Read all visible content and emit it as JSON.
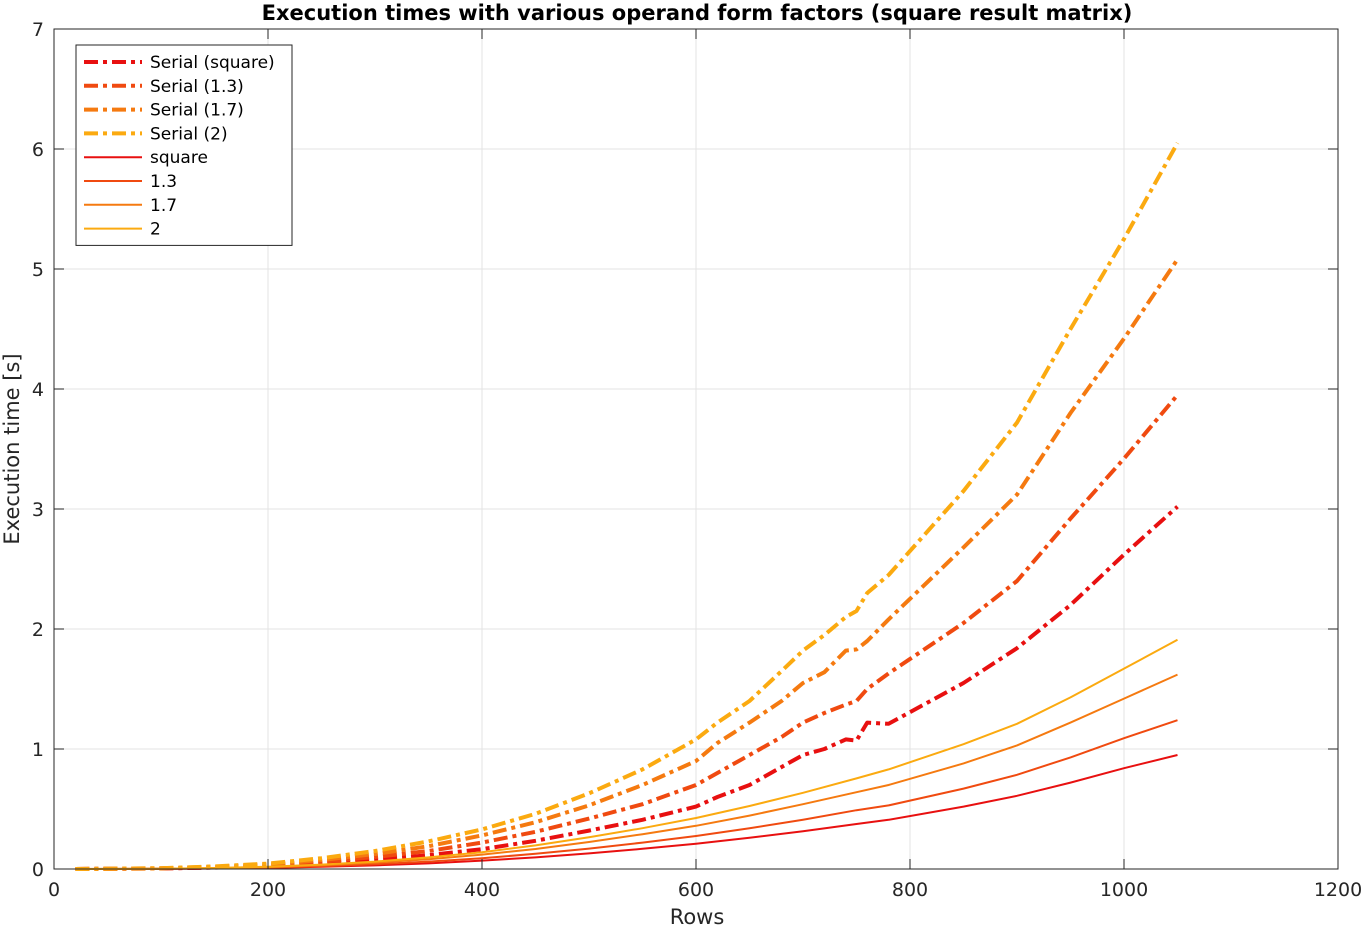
{
  "chart_data": {
    "type": "line",
    "title": "Execution times with various operand form factors (square result matrix)",
    "xlabel": "Rows",
    "ylabel": "Execution time [s]",
    "xlim": [
      0,
      1200
    ],
    "ylim": [
      0,
      7
    ],
    "xticks": [
      0,
      200,
      400,
      600,
      800,
      1000,
      1200
    ],
    "yticks": [
      0,
      1,
      2,
      3,
      4,
      5,
      6,
      7
    ],
    "grid": true,
    "legend_position": "top-left",
    "series": [
      {
        "name": "Serial (square)",
        "style": "dashdot",
        "color": "#e81010",
        "x": [
          20,
          100,
          150,
          200,
          250,
          300,
          350,
          400,
          450,
          500,
          550,
          600,
          620,
          650,
          680,
          700,
          720,
          740,
          750,
          760,
          780,
          850,
          900,
          950,
          1000,
          1050
        ],
        "y": [
          0,
          0.004,
          0.012,
          0.025,
          0.045,
          0.075,
          0.115,
          0.165,
          0.235,
          0.32,
          0.41,
          0.52,
          0.6,
          0.7,
          0.85,
          0.95,
          1.0,
          1.08,
          1.07,
          1.22,
          1.21,
          1.55,
          1.84,
          2.2,
          2.62,
          3.02
        ]
      },
      {
        "name": "Serial (1.3)",
        "style": "dashdot",
        "color": "#f04a10",
        "x": [
          20,
          100,
          150,
          200,
          250,
          300,
          350,
          400,
          450,
          500,
          550,
          600,
          620,
          650,
          680,
          700,
          720,
          740,
          750,
          760,
          780,
          850,
          900,
          950,
          1000,
          1050
        ],
        "y": [
          0,
          0.005,
          0.015,
          0.032,
          0.06,
          0.1,
          0.15,
          0.22,
          0.31,
          0.42,
          0.54,
          0.7,
          0.8,
          0.95,
          1.1,
          1.22,
          1.3,
          1.37,
          1.4,
          1.5,
          1.63,
          2.05,
          2.4,
          2.92,
          3.42,
          3.95
        ]
      },
      {
        "name": "Serial (1.7)",
        "style": "dashdot",
        "color": "#f57a10",
        "x": [
          20,
          100,
          150,
          200,
          250,
          300,
          350,
          400,
          450,
          500,
          550,
          600,
          620,
          650,
          680,
          700,
          720,
          740,
          750,
          760,
          780,
          850,
          900,
          950,
          1000,
          1050
        ],
        "y": [
          0,
          0.006,
          0.018,
          0.038,
          0.075,
          0.125,
          0.19,
          0.28,
          0.39,
          0.53,
          0.7,
          0.9,
          1.05,
          1.22,
          1.4,
          1.55,
          1.64,
          1.82,
          1.83,
          1.9,
          2.08,
          2.68,
          3.12,
          3.8,
          4.42,
          5.08
        ]
      },
      {
        "name": "Serial (2)",
        "style": "dashdot",
        "color": "#fbaa10",
        "x": [
          20,
          100,
          150,
          200,
          250,
          300,
          350,
          400,
          450,
          500,
          550,
          600,
          620,
          650,
          680,
          700,
          720,
          740,
          750,
          760,
          780,
          850,
          900,
          950,
          1000,
          1050
        ],
        "y": [
          0,
          0.007,
          0.022,
          0.045,
          0.09,
          0.15,
          0.23,
          0.33,
          0.46,
          0.63,
          0.83,
          1.08,
          1.22,
          1.4,
          1.65,
          1.82,
          1.95,
          2.1,
          2.15,
          2.3,
          2.45,
          3.15,
          3.72,
          4.5,
          5.25,
          6.05
        ]
      },
      {
        "name": "square",
        "style": "solid",
        "color": "#e81010",
        "x": [
          20,
          100,
          150,
          200,
          250,
          300,
          350,
          400,
          450,
          500,
          550,
          600,
          650,
          700,
          750,
          780,
          850,
          900,
          950,
          1000,
          1050
        ],
        "y": [
          0,
          0.001,
          0.004,
          0.009,
          0.018,
          0.03,
          0.047,
          0.07,
          0.097,
          0.13,
          0.168,
          0.21,
          0.26,
          0.315,
          0.375,
          0.41,
          0.52,
          0.61,
          0.72,
          0.84,
          0.95
        ]
      },
      {
        "name": "1.3",
        "style": "solid",
        "color": "#f04a10",
        "x": [
          20,
          100,
          150,
          200,
          250,
          300,
          350,
          400,
          450,
          500,
          550,
          600,
          650,
          700,
          750,
          780,
          850,
          900,
          950,
          1000,
          1050
        ],
        "y": [
          0,
          0.0013,
          0.005,
          0.012,
          0.024,
          0.04,
          0.062,
          0.09,
          0.127,
          0.17,
          0.22,
          0.275,
          0.34,
          0.41,
          0.49,
          0.53,
          0.67,
          0.785,
          0.93,
          1.09,
          1.24
        ]
      },
      {
        "name": "1.7",
        "style": "solid",
        "color": "#f57a10",
        "x": [
          20,
          100,
          150,
          200,
          250,
          300,
          350,
          400,
          450,
          500,
          550,
          600,
          650,
          700,
          750,
          780,
          850,
          900,
          950,
          1000,
          1050
        ],
        "y": [
          0,
          0.0017,
          0.007,
          0.016,
          0.031,
          0.053,
          0.082,
          0.12,
          0.167,
          0.225,
          0.29,
          0.36,
          0.445,
          0.54,
          0.64,
          0.7,
          0.88,
          1.03,
          1.22,
          1.42,
          1.62
        ]
      },
      {
        "name": "2",
        "style": "solid",
        "color": "#fbaa10",
        "x": [
          20,
          100,
          150,
          200,
          250,
          300,
          350,
          400,
          450,
          500,
          550,
          600,
          650,
          700,
          750,
          780,
          850,
          900,
          950,
          1000,
          1050
        ],
        "y": [
          0,
          0.002,
          0.008,
          0.019,
          0.037,
          0.062,
          0.097,
          0.14,
          0.197,
          0.265,
          0.34,
          0.425,
          0.525,
          0.635,
          0.755,
          0.83,
          1.04,
          1.21,
          1.43,
          1.67,
          1.91
        ]
      }
    ]
  }
}
